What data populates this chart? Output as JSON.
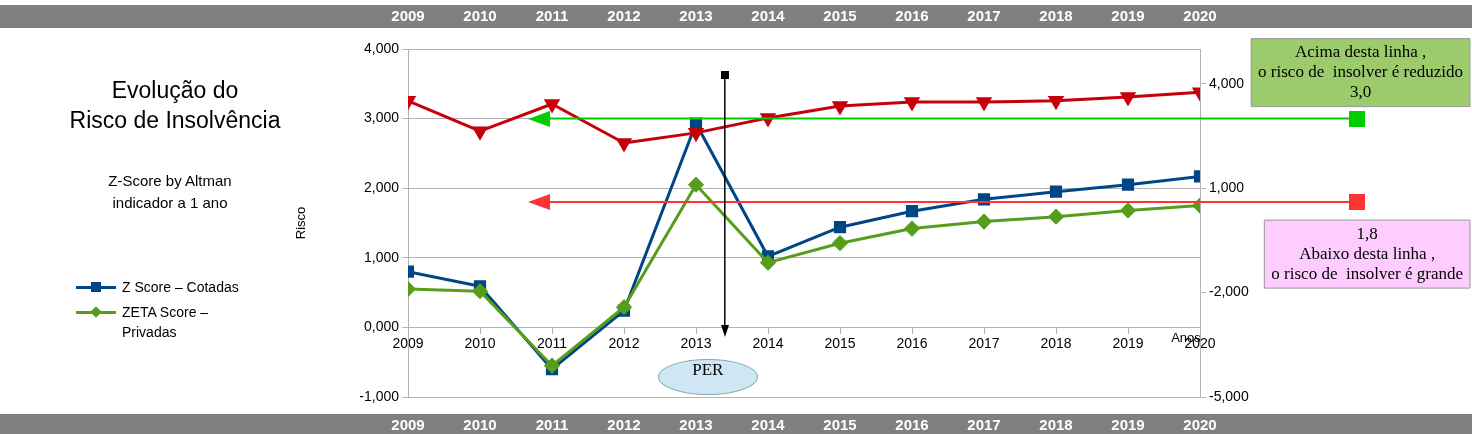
{
  "chart_data": {
    "type": "line",
    "title": "Evolução do\nRisco de Insolvência",
    "subtitle": "Z-Score  by  Altman\nindicador a 1 ano",
    "xlabel": "Anos",
    "ylabel": "Risco",
    "x": [
      2009,
      2010,
      2011,
      2012,
      2013,
      2014,
      2015,
      2016,
      2017,
      2018,
      2019,
      2020
    ],
    "xlim": [
      2009,
      2020
    ],
    "xticks": [
      2009,
      2010,
      2011,
      2012,
      2013,
      2014,
      2015,
      2016,
      2017,
      2018,
      2019,
      2020
    ],
    "x2lim": [
      2009,
      2020
    ],
    "x2ticks": [
      2009,
      2010,
      2011,
      2012,
      2013,
      2014,
      2015,
      2016,
      2017,
      2018,
      2019,
      2020
    ],
    "annotations": [
      "2009",
      "2010",
      "2011",
      "2012",
      "2013",
      "2014",
      "2015",
      "2016",
      "2017",
      "2018",
      "2019",
      "2020"
    ],
    "ylim": [
      -1,
      4
    ],
    "yticks": [
      {
        "value": -1,
        "label": "-1,000"
      },
      {
        "value": 0,
        "label": "0,000"
      },
      {
        "value": 1,
        "label": "1,000"
      },
      {
        "value": 2,
        "label": "2,000"
      },
      {
        "value": 3,
        "label": "3,000"
      },
      {
        "value": 4,
        "label": "4,000"
      }
    ],
    "y2lim": [
      -5,
      5
    ],
    "y2ticks": [
      {
        "value": -5,
        "label": "-5,000"
      },
      {
        "value": -2,
        "label": "-2,000"
      },
      {
        "value": 1,
        "label": "1,000"
      },
      {
        "value": 4,
        "label": "4,000"
      }
    ],
    "series": [
      {
        "name": "Z  Score – Cotadas",
        "color": "#004586",
        "marker": "square",
        "values": [
          0.8,
          0.59,
          -0.6,
          0.24,
          2.93,
          1.02,
          1.44,
          1.67,
          1.84,
          1.95,
          2.05,
          2.17
        ]
      },
      {
        "name": "ZETA  Score – Privadas",
        "color": "#579d1c",
        "marker": "diamond",
        "values": [
          0.55,
          0.52,
          -0.55,
          0.29,
          2.05,
          0.93,
          1.21,
          1.42,
          1.52,
          1.59,
          1.68,
          1.75
        ]
      },
      {
        "color": "#c5000b",
        "marker": "triangle",
        "axis": "y2",
        "values": [
          3.51,
          2.64,
          3.42,
          2.3,
          2.59,
          3.02,
          3.36,
          3.48,
          3.48,
          3.51,
          3.62,
          3.76
        ]
      }
    ],
    "ref_lines": [
      {
        "axis": "y",
        "value": 3.0,
        "label": "Acima desta linha ,\no risco de  insolver é reduzido\n3,0",
        "color": "#00cc00"
      },
      {
        "axis": "y",
        "value": 1.8,
        "label": "1,8\nAbaixo desta linha ,\no risco de  insolver é grande",
        "color": "#ff3333"
      },
      {
        "axis": "x",
        "value": 2013.4,
        "label": "PER",
        "color": "#000000"
      }
    ],
    "grid": "y",
    "legend": "left",
    "line_style": "solid"
  }
}
